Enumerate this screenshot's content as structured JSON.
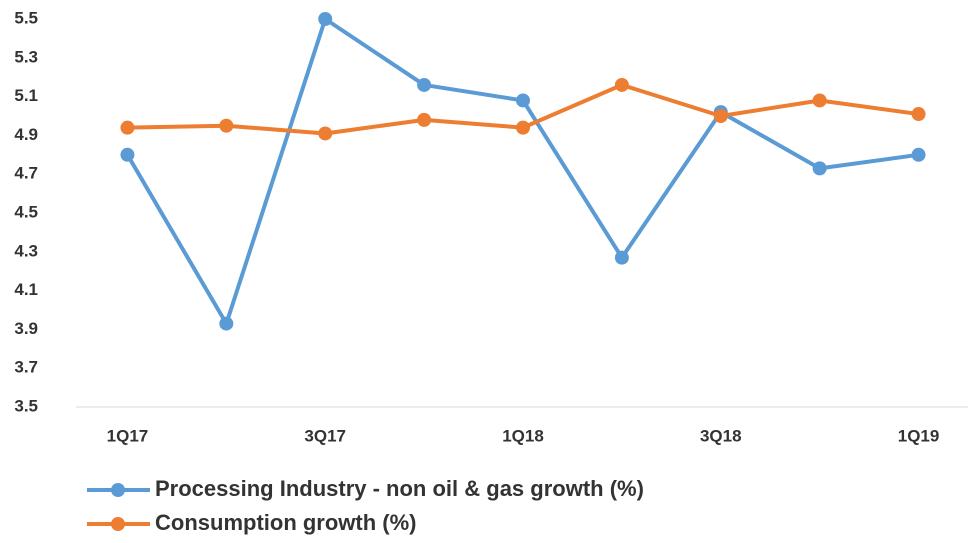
{
  "chart_data": {
    "type": "line",
    "categories": [
      "1Q17",
      null,
      "3Q17",
      null,
      "1Q18",
      null,
      "3Q18",
      null,
      "1Q19"
    ],
    "series": [
      {
        "name": "Processing Industry - non oil & gas growth (%)",
        "color": "#5b9bd5",
        "values": [
          4.8,
          3.93,
          5.5,
          5.16,
          5.08,
          4.27,
          5.02,
          4.73,
          4.8
        ]
      },
      {
        "name": "Consumption growth (%)",
        "color": "#ed7d31",
        "values": [
          4.94,
          4.95,
          4.91,
          4.98,
          4.94,
          5.16,
          5.0,
          5.08,
          5.01
        ]
      }
    ],
    "ylim": [
      3.5,
      5.5
    ],
    "yticks": [
      3.5,
      3.7,
      3.9,
      4.1,
      4.3,
      4.5,
      4.7,
      4.9,
      5.1,
      5.3,
      5.5
    ],
    "grid": false,
    "legend": "bottom"
  }
}
